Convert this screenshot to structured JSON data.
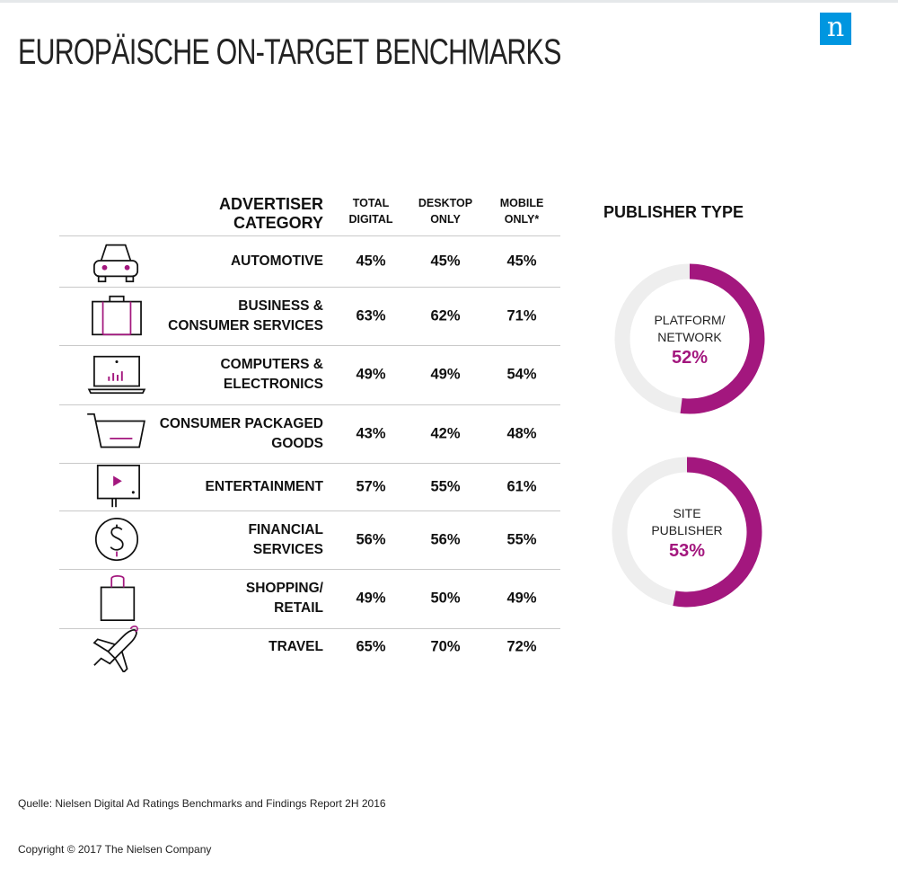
{
  "page": {
    "title": "EUROPÄISCHE ON-TARGET BENCHMARKS",
    "logo_text": "n",
    "source": "Quelle: Nielsen Digital Ad Ratings Benchmarks and Findings Report 2H 2016",
    "copyright": "Copyright © 2017 The Nielsen Company"
  },
  "colors": {
    "accent": "#a3177e",
    "donut_track": "#eeeeee",
    "logo": "#0096e0",
    "text": "#111111"
  },
  "chart_data": [
    {
      "type": "table",
      "title": "",
      "columns": [
        "ADVERTISER CATEGORY",
        "TOTAL DIGITAL",
        "DESKTOP ONLY",
        "MOBILE ONLY*"
      ],
      "column_headers": {
        "category": "ADVERTISER CATEGORY",
        "total": "TOTAL\nDIGITAL",
        "desktop": "DESKTOP\nONLY",
        "mobile": "MOBILE\nONLY*"
      },
      "rows": [
        {
          "icon": "car-icon",
          "label": "AUTOMOTIVE",
          "total": "45%",
          "desktop": "45%",
          "mobile": "45%"
        },
        {
          "icon": "briefcase-icon",
          "label": "BUSINESS &\nCONSUMER SERVICES",
          "total": "63%",
          "desktop": "62%",
          "mobile": "71%"
        },
        {
          "icon": "laptop-icon",
          "label": "COMPUTERS &\nELECTRONICS",
          "total": "49%",
          "desktop": "49%",
          "mobile": "54%"
        },
        {
          "icon": "cart-icon",
          "label": "CONSUMER PACKAGED\nGOODS",
          "total": "43%",
          "desktop": "42%",
          "mobile": "48%"
        },
        {
          "icon": "tv-icon",
          "label": "ENTERTAINMENT",
          "total": "57%",
          "desktop": "55%",
          "mobile": "61%"
        },
        {
          "icon": "dollar-icon",
          "label": "FINANCIAL\nSERVICES",
          "total": "56%",
          "desktop": "56%",
          "mobile": "55%"
        },
        {
          "icon": "shopping-bag-icon",
          "label": "SHOPPING/\nRETAIL",
          "total": "49%",
          "desktop": "50%",
          "mobile": "49%"
        },
        {
          "icon": "airplane-icon",
          "label": "TRAVEL",
          "total": "65%",
          "desktop": "70%",
          "mobile": "72%"
        }
      ]
    },
    {
      "type": "pie",
      "title": "PUBLISHER TYPE",
      "series": [
        {
          "name": "PLATFORM/\nNETWORK",
          "value": 52,
          "label": "52%"
        },
        {
          "name": "SITE\nPUBLISHER",
          "value": 53,
          "label": "53%"
        }
      ]
    }
  ]
}
